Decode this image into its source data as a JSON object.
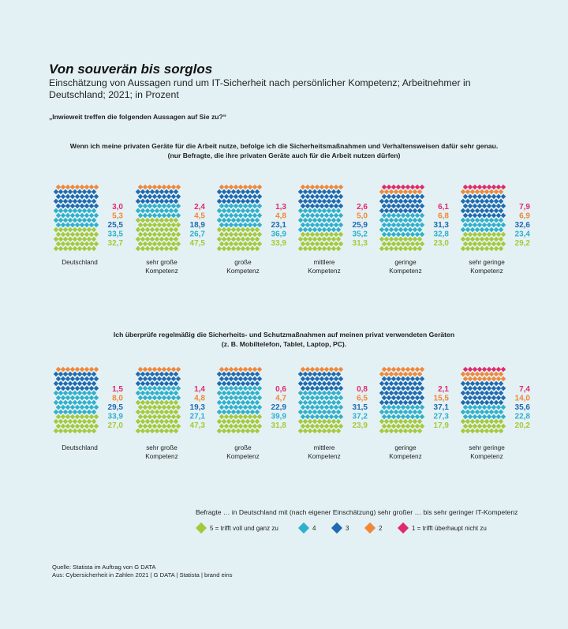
{
  "header": {
    "title": "Von souverän bis sorglos",
    "subtitle": "Einschätzung von Aussagen rund um IT-Sicherheit nach persönlicher Kompetenz; Arbeitnehmer in Deutschland; 2021; in Prozent",
    "question": "„Inwieweit treffen die folgenden Aussagen auf Sie zu?“"
  },
  "colors": {
    "5": "#a5c93a",
    "4": "#2fb0cc",
    "3": "#1f6ab0",
    "2": "#f0873a",
    "1": "#de2b6a"
  },
  "legend": {
    "intro": "Befragte … in Deutschland mit (nach eigener Einschätzung) sehr großer … bis sehr geringer IT-Kompetenz",
    "items": [
      {
        "key": "5",
        "label": "5 = trifft voll und ganz zu"
      },
      {
        "key": "4",
        "label": "4"
      },
      {
        "key": "3",
        "label": "3"
      },
      {
        "key": "2",
        "label": "2"
      },
      {
        "key": "1",
        "label": "1 = trifft überhaupt nicht zu"
      }
    ]
  },
  "source": {
    "line1": "Quelle: Statista im Auftrag von G DATA",
    "line2": "Aus: Cybersicherheit in Zahlen 2021 | G DATA | Statista | brand eins"
  },
  "chart_data": [
    {
      "type": "stacked-bar",
      "heading_line1": "Wenn ich meine privaten Geräte für die Arbeit nutze, befolge ich die Sicherheitsmaßnahmen und Verhaltensweisen dafür sehr genau.",
      "heading_line2": "(nur Befragte, die ihre privaten Geräte auch für die Arbeit nutzen dürfen)",
      "stack_order": [
        "5",
        "4",
        "3",
        "2",
        "1"
      ],
      "groups": [
        {
          "label_line1": "Deutschland",
          "label_line2": "",
          "values": {
            "1": "3,0",
            "2": "5,3",
            "3": "25,5",
            "4": "33,5",
            "5": "32,7"
          }
        },
        {
          "label_line1": "sehr große",
          "label_line2": "Kompetenz",
          "values": {
            "1": "2,4",
            "2": "4,5",
            "3": "18,9",
            "4": "26,7",
            "5": "47,5"
          }
        },
        {
          "label_line1": "große",
          "label_line2": "Kompetenz",
          "values": {
            "1": "1,3",
            "2": "4,8",
            "3": "23,1",
            "4": "36,9",
            "5": "33,9"
          }
        },
        {
          "label_line1": "mittlere",
          "label_line2": "Kompetenz",
          "values": {
            "1": "2,6",
            "2": "5,0",
            "3": "25,9",
            "4": "35,2",
            "5": "31,3"
          }
        },
        {
          "label_line1": "geringe",
          "label_line2": "Kompetenz",
          "values": {
            "1": "6,1",
            "2": "6,8",
            "3": "31,3",
            "4": "32,8",
            "5": "23,0"
          }
        },
        {
          "label_line1": "sehr geringe",
          "label_line2": "Kompetenz",
          "values": {
            "1": "7,9",
            "2": "6,9",
            "3": "32,6",
            "4": "23,4",
            "5": "29,2"
          }
        }
      ]
    },
    {
      "type": "stacked-bar",
      "heading_line1": "Ich überprüfe regelmäßig die Sicherheits- und Schutzmaßnahmen auf meinen privat verwendeten Geräten",
      "heading_line2": "(z. B. Mobiltelefon, Tablet, Laptop, PC).",
      "stack_order": [
        "5",
        "4",
        "3",
        "2",
        "1"
      ],
      "groups": [
        {
          "label_line1": "Deutschland",
          "label_line2": "",
          "values": {
            "1": "1,5",
            "2": "8,0",
            "3": "29,5",
            "4": "33,9",
            "5": "27,0"
          }
        },
        {
          "label_line1": "sehr große",
          "label_line2": "Kompetenz",
          "values": {
            "1": "1,4",
            "2": "4,8",
            "3": "19,3",
            "4": "27,1",
            "5": "47,3"
          }
        },
        {
          "label_line1": "große",
          "label_line2": "Kompetenz",
          "values": {
            "1": "0,6",
            "2": "4,7",
            "3": "22,9",
            "4": "39,9",
            "5": "31,8"
          }
        },
        {
          "label_line1": "mittlere",
          "label_line2": "Kompetenz",
          "values": {
            "1": "0,8",
            "2": "6,5",
            "3": "31,5",
            "4": "37,2",
            "5": "23,9"
          }
        },
        {
          "label_line1": "geringe",
          "label_line2": "Kompetenz",
          "values": {
            "1": "2,1",
            "2": "15,5",
            "3": "37,1",
            "4": "27,3",
            "5": "17,9"
          }
        },
        {
          "label_line1": "sehr geringe",
          "label_line2": "Kompetenz",
          "values": {
            "1": "7,4",
            "2": "14,0",
            "3": "35,6",
            "4": "22,8",
            "5": "20,2"
          }
        }
      ]
    }
  ]
}
